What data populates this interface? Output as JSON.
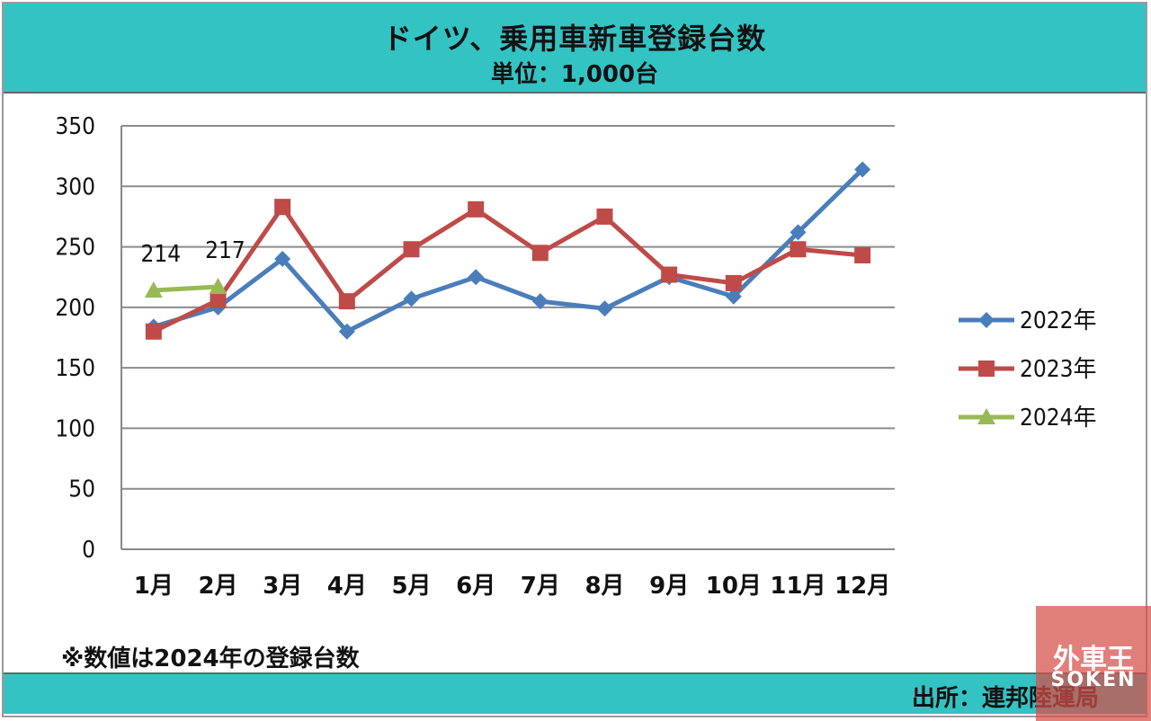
{
  "title": "ドイツ、乗用車新車登録台数",
  "subtitle": "単位：1,000台",
  "note": "※数値は2024年の登録台数",
  "source": "出所：連邦陸運局",
  "logo": {
    "brand_jp": "外車王",
    "brand_en": "SOKEN"
  },
  "colors": {
    "header": "#33c3c3",
    "s2022": "#4a7ebb",
    "s2023": "#be4b48",
    "s2024": "#98b954",
    "grid": "#8c8c8c"
  },
  "chart_data": {
    "type": "line",
    "title": "ドイツ、乗用車新車登録台数",
    "categories": [
      "1月",
      "2月",
      "3月",
      "4月",
      "5月",
      "6月",
      "7月",
      "8月",
      "9月",
      "10月",
      "11月",
      "12月"
    ],
    "ylim": [
      0,
      350
    ],
    "yticks": [
      0,
      50,
      100,
      150,
      200,
      250,
      300,
      350
    ],
    "grid": true,
    "legend_position": "right",
    "series": [
      {
        "name": "2022年",
        "marker": "diamond",
        "color": "#4a7ebb",
        "values": [
          184,
          200,
          240,
          180,
          207,
          225,
          205,
          199,
          225,
          209,
          262,
          314
        ]
      },
      {
        "name": "2023年",
        "marker": "square",
        "color": "#be4b48",
        "values": [
          180,
          206,
          283,
          205,
          248,
          281,
          245,
          275,
          227,
          220,
          248,
          243
        ]
      },
      {
        "name": "2024年",
        "marker": "triangle",
        "color": "#98b954",
        "values": [
          214,
          217,
          null,
          null,
          null,
          null,
          null,
          null,
          null,
          null,
          null,
          null
        ],
        "data_labels": [
          "214",
          "217"
        ]
      }
    ]
  }
}
